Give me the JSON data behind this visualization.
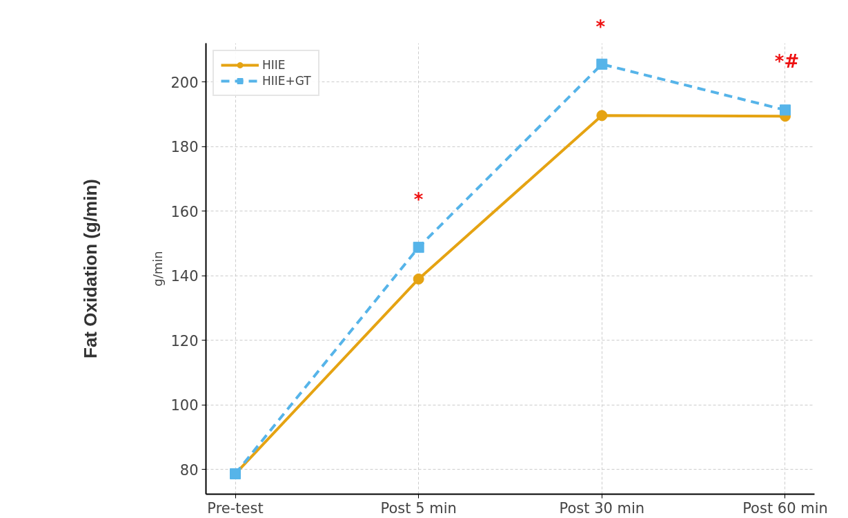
{
  "chart_data": {
    "type": "line",
    "categories": [
      "Pre-test",
      "Post 5 min",
      "Post 30 min",
      "Post 60 min"
    ],
    "ylabel": "g/min",
    "ylim": [
      72.4,
      212
    ],
    "yticks": [
      80,
      100,
      120,
      140,
      160,
      180,
      200
    ],
    "series": [
      {
        "name": "HIIE",
        "color": "#e5a312",
        "values": [
          78.7,
          139.0,
          189.6,
          189.4
        ],
        "marker": "circle",
        "line_style": "solid"
      },
      {
        "name": "HIIE+GT",
        "color": "#56b4e9",
        "values": [
          78.7,
          148.8,
          205.5,
          191.3
        ],
        "marker": "square",
        "line_style": "dashed"
      }
    ],
    "annotations": [
      "Fat Oxidation (g/min)",
      "*",
      "*",
      "*#"
    ],
    "grid": true,
    "legend": "top left"
  }
}
